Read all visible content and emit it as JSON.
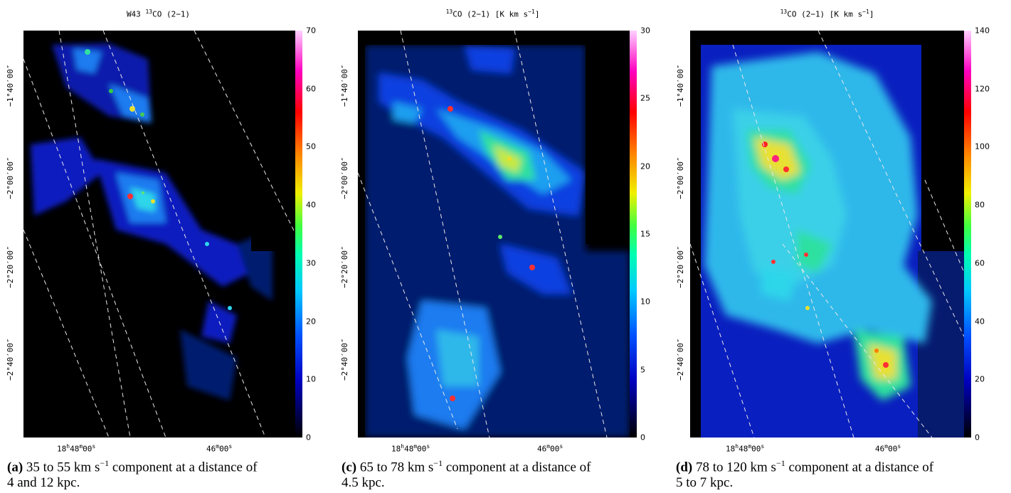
{
  "panels": [
    {
      "title_prefix": "W43 ",
      "title_sup": "13",
      "title_rest": "CO (2−1)",
      "colorbar": {
        "max": 70,
        "ticks": [
          "70",
          "60",
          "50",
          "40",
          "30",
          "20",
          "10",
          "0"
        ]
      },
      "dec_labels": [
        "−1°40′00″",
        "−2°00′00″",
        "−2°20′00″",
        "−2°40′00″"
      ],
      "ra_labels": {
        "left_main": "18",
        "left_h": "h",
        "left_min": "48",
        "left_m": "m",
        "left_sec": "00",
        "left_s": "s",
        "right_min": "46",
        "right_m": "m",
        "right_sec": "00",
        "right_s": "s"
      },
      "caption_label": "(a)",
      "caption_text": " 35 to 55 km s",
      "caption_sup": "−1",
      "caption_tail": " component at a distance of",
      "caption_line2": "4 and 12 kpc."
    },
    {
      "title_prefix": "",
      "title_sup": "13",
      "title_rest": "CO (2−1) [K km s",
      "title_sup2": "−1",
      "title_end": "]",
      "colorbar": {
        "max": 30,
        "ticks": [
          "30",
          "25",
          "20",
          "15",
          "10",
          "5",
          "0"
        ]
      },
      "dec_labels": [
        "−1°40′00″",
        "−2°00′00″",
        "−2°20′00″",
        "−2°40′00″"
      ],
      "ra_labels": {
        "left_main": "18",
        "left_h": "h",
        "left_min": "48",
        "left_m": "m",
        "left_sec": "00",
        "left_s": "s",
        "right_min": "46",
        "right_m": "m",
        "right_sec": "00",
        "right_s": "s"
      },
      "caption_label": "(c)",
      "caption_text": " 65 to 78 km s",
      "caption_sup": "−1",
      "caption_tail": " component at a distance of",
      "caption_line2": "4.5 kpc."
    },
    {
      "title_prefix": "",
      "title_sup": "13",
      "title_rest": "CO (2−1) [K km s",
      "title_sup2": "−1",
      "title_end": "]",
      "colorbar": {
        "max": 140,
        "ticks": [
          "140",
          "120",
          "100",
          "80",
          "60",
          "40",
          "20",
          "0"
        ]
      },
      "dec_labels": [
        "−1°40′00″",
        "−2°00′00″",
        "−2°20′00″",
        "−2°40′00″"
      ],
      "ra_labels": {
        "left_main": "18",
        "left_h": "h",
        "left_min": "48",
        "left_m": "m",
        "left_sec": "00",
        "left_s": "s",
        "right_min": "46",
        "right_m": "m",
        "right_sec": "00",
        "right_s": "s"
      },
      "caption_label": "(d)",
      "caption_text": " 78 to 120 km s",
      "caption_sup": "−1",
      "caption_tail": " component at a distance of",
      "caption_line2": "5 to 7 kpc."
    }
  ]
}
